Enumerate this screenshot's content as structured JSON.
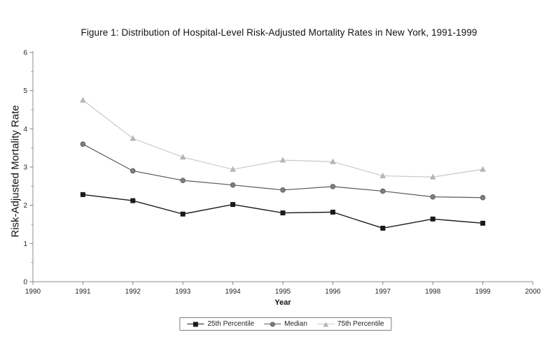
{
  "chart_data": {
    "type": "line",
    "title": "Figure 1: Distribution of Hospital-Level Risk-Adjusted Mortality Rates in New York, 1991-1999",
    "xlabel": "Year",
    "ylabel": "Risk-Adjusted Mortality Rate",
    "xlim": [
      1990,
      2000
    ],
    "ylim": [
      0,
      6
    ],
    "x_ticks": [
      1990,
      1991,
      1992,
      1993,
      1994,
      1995,
      1996,
      1997,
      1998,
      1999,
      2000
    ],
    "y_ticks": [
      0,
      1,
      2,
      3,
      4,
      5,
      6
    ],
    "y_minor_step": 0.5,
    "grid": false,
    "legend_position": "bottom",
    "axis_color": "#a0a0a0",
    "tick_color": "#808080",
    "text_color": "#262626",
    "x": [
      1991,
      1992,
      1993,
      1994,
      1995,
      1996,
      1997,
      1998,
      1999
    ],
    "series": [
      {
        "name": "25th Percentile",
        "marker": "square",
        "color": "#1a1a1a",
        "line_color": "#1a1a1a",
        "line_width": 1.4,
        "values": [
          2.28,
          2.12,
          1.77,
          2.02,
          1.8,
          1.82,
          1.4,
          1.64,
          1.53
        ]
      },
      {
        "name": "Median",
        "marker": "circle",
        "color": "#7f7f7f",
        "line_color": "#595959",
        "line_width": 1.2,
        "values": [
          3.6,
          2.9,
          2.65,
          2.53,
          2.4,
          2.49,
          2.37,
          2.22,
          2.2
        ]
      },
      {
        "name": "75th Percentile",
        "marker": "triangle",
        "color": "#b5b5b5",
        "line_color": "#c9c9c9",
        "line_width": 1.2,
        "values": [
          4.75,
          3.75,
          3.26,
          2.94,
          3.18,
          3.14,
          2.77,
          2.74,
          2.94
        ]
      }
    ]
  }
}
